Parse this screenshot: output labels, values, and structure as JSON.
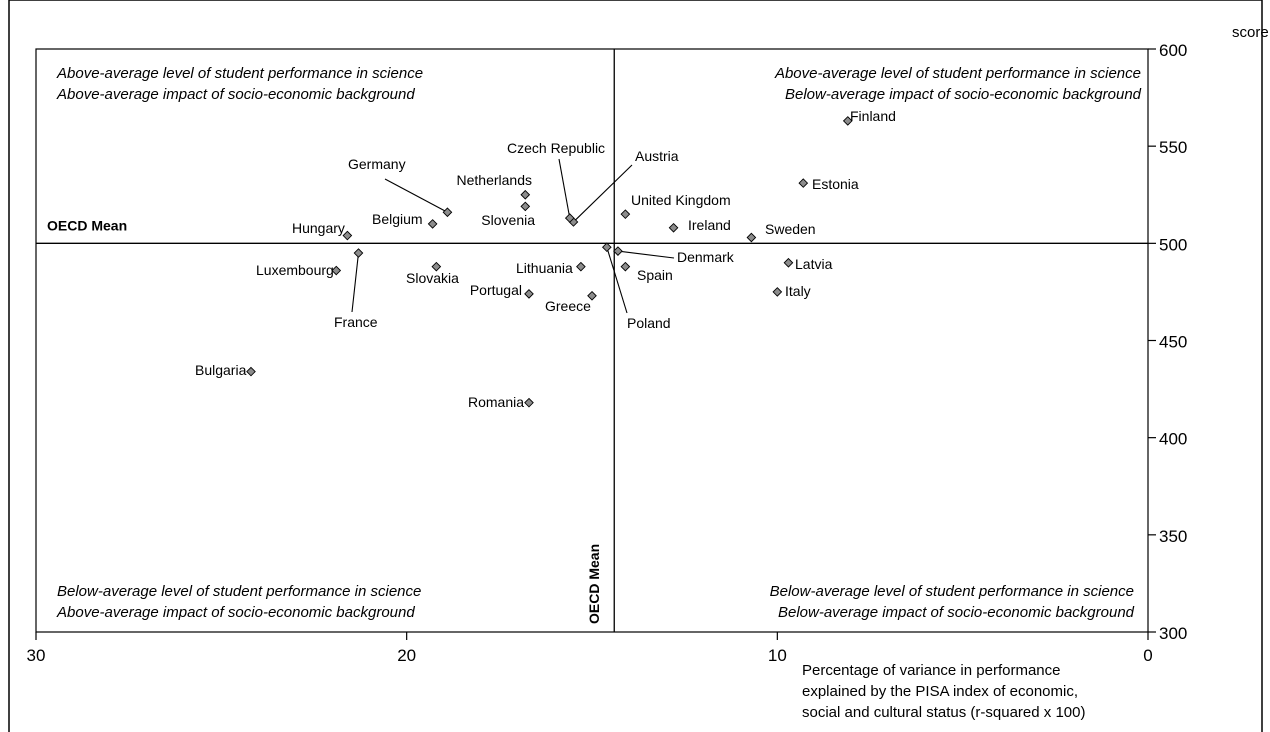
{
  "chart_data": {
    "type": "scatter",
    "x_axis": {
      "min": 0,
      "max": 30,
      "reversed": true,
      "ticks": [
        30,
        20,
        10,
        0
      ],
      "label": [
        "Percentage of variance in performance",
        "explained by the PISA index of economic,",
        "social and cultural status (r-squared x 100)"
      ]
    },
    "y_axis": {
      "min": 300,
      "max": 600,
      "position": "right",
      "ticks": [
        300,
        350,
        400,
        450,
        500,
        550,
        600
      ],
      "label": "score"
    },
    "oecd_mean": {
      "x": 14.4,
      "y": 500,
      "label": "OECD Mean"
    },
    "quadrant_labels": {
      "top_left": [
        "Above-average level of student performance in science",
        "Above-average impact of socio-economic background"
      ],
      "top_right": [
        "Above-average level of student performance in science",
        "Below-average impact of socio-economic background"
      ],
      "bottom_left": [
        "Below-average level of student performance in science",
        "Above-average impact of socio-economic background"
      ],
      "bottom_right": [
        "Below-average level of student performance in science",
        "Below-average impact of socio-economic background"
      ]
    },
    "points": [
      {
        "name": "Finland",
        "x": 8.1,
        "y": 563
      },
      {
        "name": "Estonia",
        "x": 9.3,
        "y": 531
      },
      {
        "name": "Sweden",
        "x": 10.7,
        "y": 503
      },
      {
        "name": "Latvia",
        "x": 9.7,
        "y": 490
      },
      {
        "name": "Italy",
        "x": 10.0,
        "y": 475
      },
      {
        "name": "United Kingdom",
        "x": 14.1,
        "y": 515
      },
      {
        "name": "Ireland",
        "x": 12.8,
        "y": 508
      },
      {
        "name": "Denmark",
        "x": 14.3,
        "y": 496
      },
      {
        "name": "Spain",
        "x": 14.1,
        "y": 488
      },
      {
        "name": "Poland",
        "x": 14.6,
        "y": 498
      },
      {
        "name": "Austria",
        "x": 15.5,
        "y": 511
      },
      {
        "name": "Czech Republic",
        "x": 15.6,
        "y": 513
      },
      {
        "name": "Netherlands",
        "x": 16.8,
        "y": 525
      },
      {
        "name": "Slovenia",
        "x": 16.8,
        "y": 519
      },
      {
        "name": "Lithuania",
        "x": 15.3,
        "y": 488
      },
      {
        "name": "Greece",
        "x": 15.0,
        "y": 473
      },
      {
        "name": "Portugal",
        "x": 16.7,
        "y": 474
      },
      {
        "name": "Romania",
        "x": 16.7,
        "y": 418
      },
      {
        "name": "Germany",
        "x": 18.9,
        "y": 516
      },
      {
        "name": "Belgium",
        "x": 19.3,
        "y": 510
      },
      {
        "name": "Slovakia",
        "x": 19.2,
        "y": 488
      },
      {
        "name": "Hungary",
        "x": 21.6,
        "y": 504
      },
      {
        "name": "France",
        "x": 21.3,
        "y": 495
      },
      {
        "name": "Luxembourg",
        "x": 21.9,
        "y": 486
      },
      {
        "name": "Bulgaria",
        "x": 24.2,
        "y": 434
      }
    ]
  }
}
